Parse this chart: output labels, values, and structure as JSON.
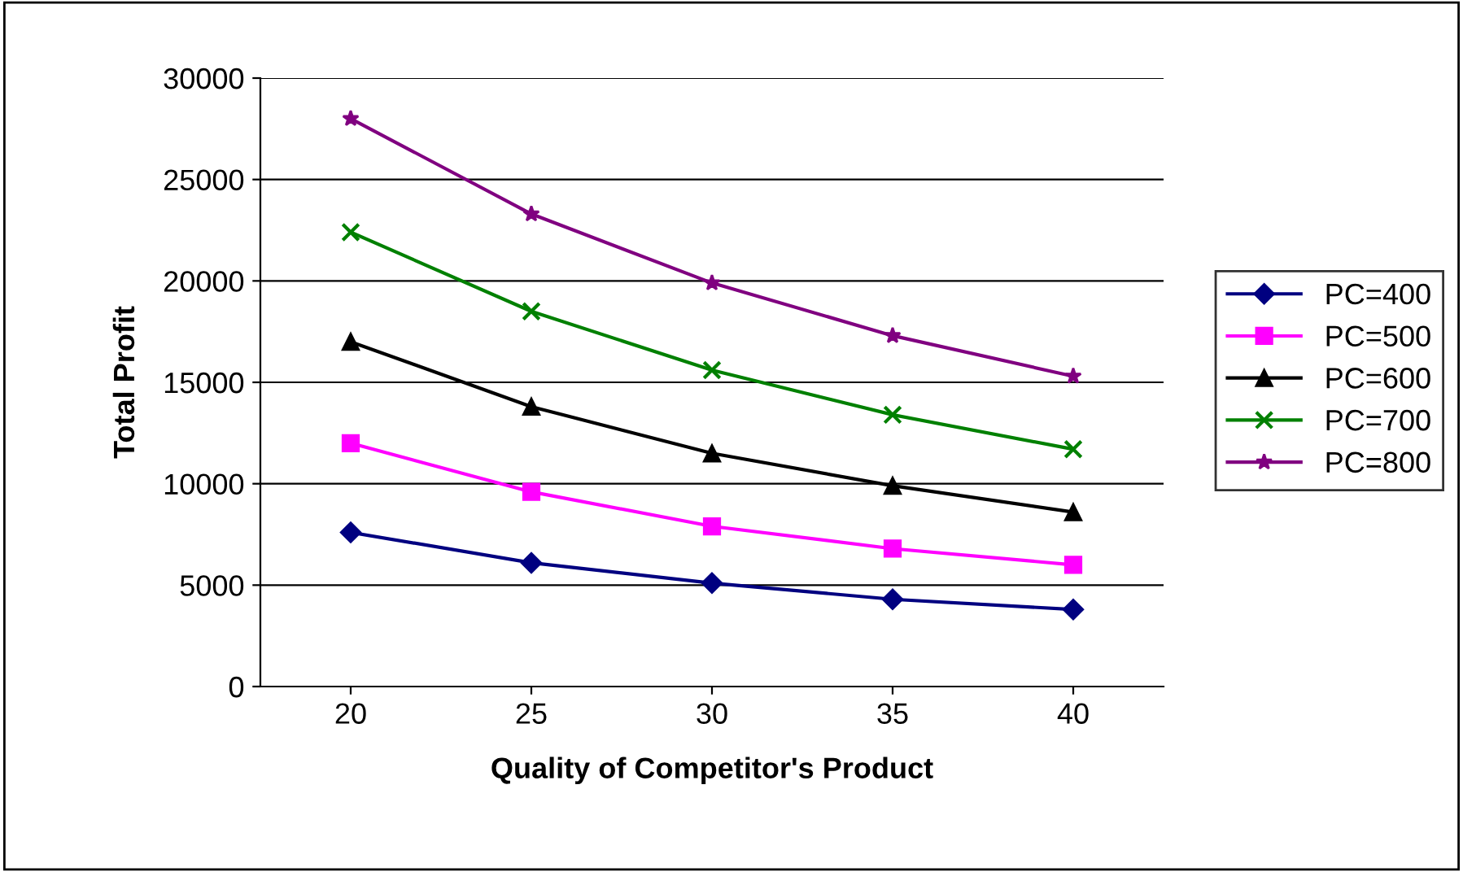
{
  "chart_data": {
    "type": "line",
    "xlabel": "Quality of Competitor's Product",
    "ylabel": "Total Profit",
    "categories": [
      "20",
      "25",
      "30",
      "35",
      "40"
    ],
    "series": [
      {
        "name": "PC=400",
        "color": "#000080",
        "marker": "diamond",
        "values": [
          7600,
          6100,
          5100,
          4300,
          3800
        ]
      },
      {
        "name": "PC=500",
        "color": "#ff00ff",
        "marker": "square",
        "values": [
          12000,
          9600,
          7900,
          6800,
          6000
        ]
      },
      {
        "name": "PC=600",
        "color": "#000000",
        "marker": "triangle",
        "values": [
          17000,
          13800,
          11500,
          9900,
          8600
        ]
      },
      {
        "name": "PC=700",
        "color": "#008000",
        "marker": "cross",
        "values": [
          22400,
          18500,
          15600,
          13400,
          11700
        ]
      },
      {
        "name": "PC=800",
        "color": "#800080",
        "marker": "star",
        "values": [
          28000,
          23300,
          19900,
          17300,
          15300
        ]
      }
    ],
    "ylim": [
      0,
      30000
    ],
    "yticks": [
      0,
      5000,
      10000,
      15000,
      20000,
      25000,
      30000
    ],
    "grid": "y",
    "legend": "right",
    "line_style": "solid"
  }
}
